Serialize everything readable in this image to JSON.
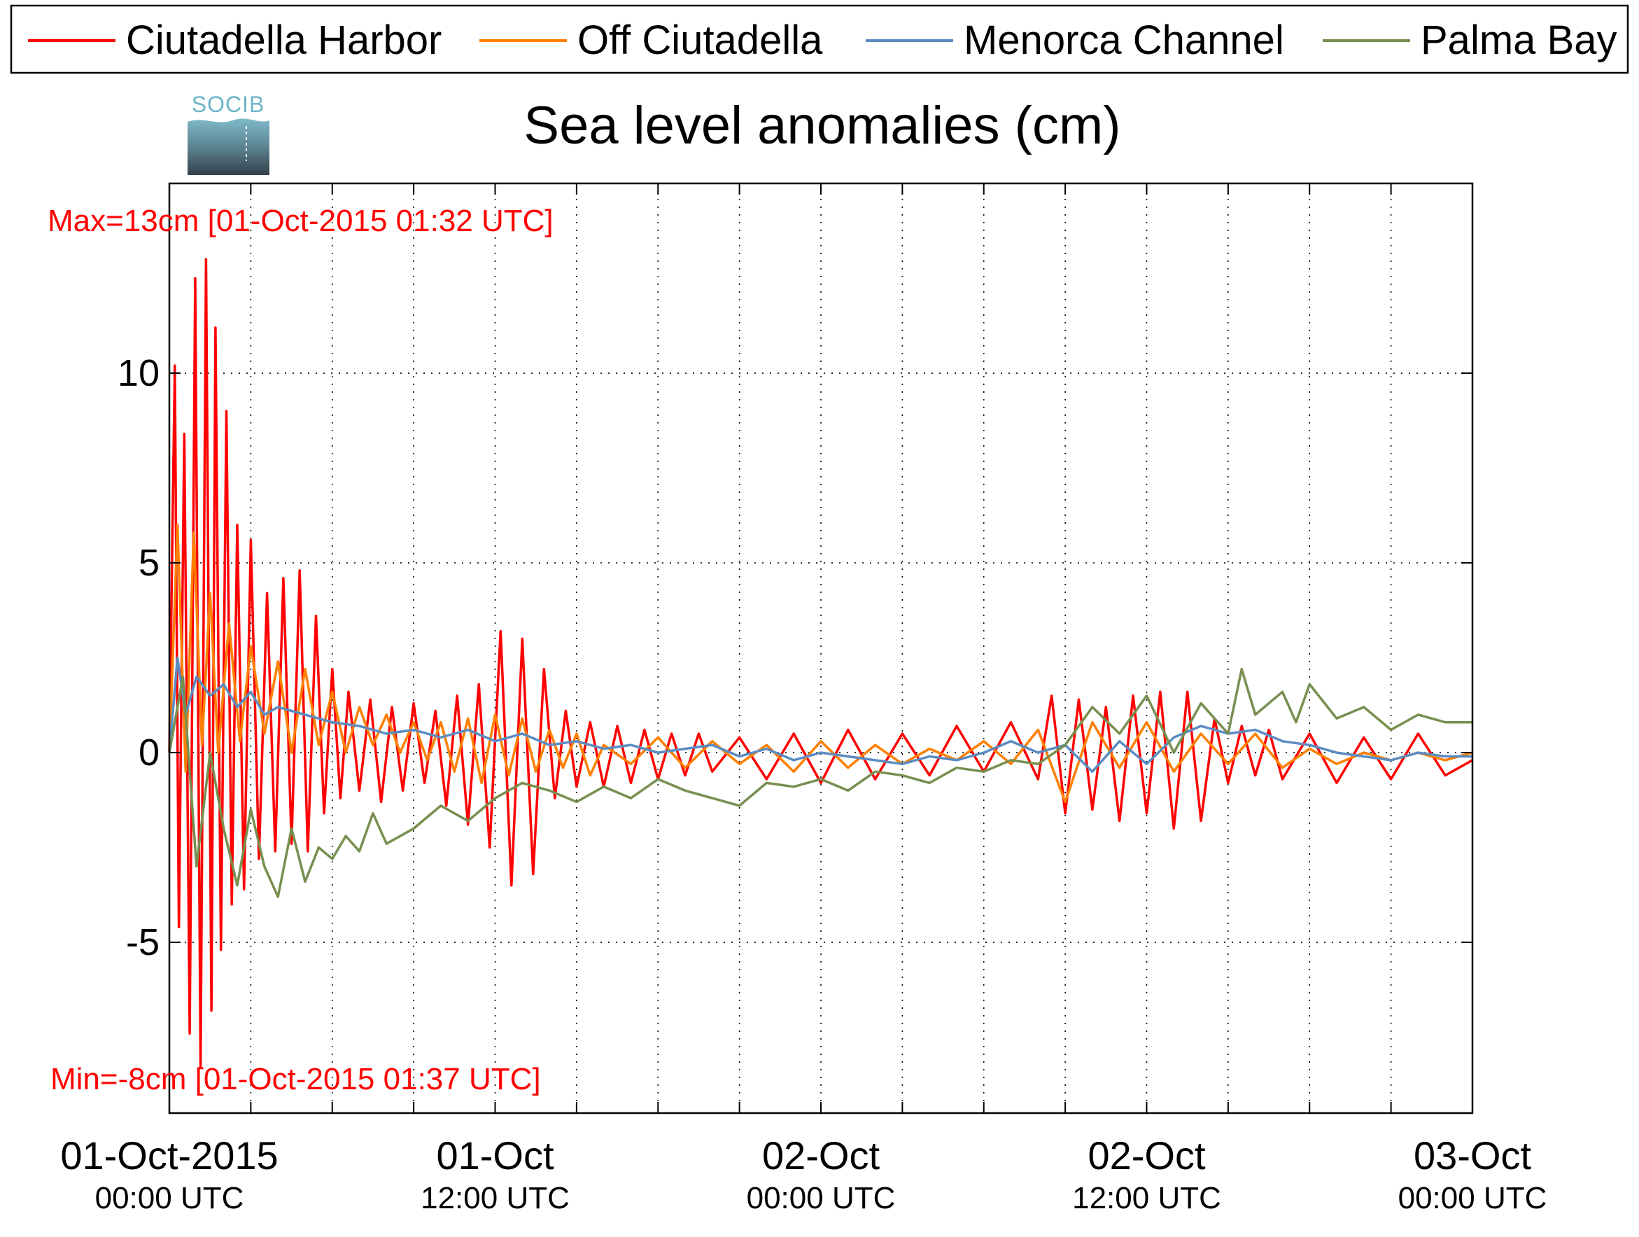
{
  "chart_data": {
    "type": "line",
    "title": "Sea level anomalies (cm)",
    "logo_text": "SOCIB",
    "ylim": [
      -9.5,
      15
    ],
    "y_ticks": [
      -5,
      0,
      5,
      10
    ],
    "y_tick_labels": [
      "-5",
      "0",
      "5",
      "10"
    ],
    "x_start": "2015-10-01 00:00 UTC",
    "x_end": "2015-10-03 00:00 UTC",
    "x_ticks": [
      {
        "day": "01-Oct-2015",
        "time": "00:00 UTC",
        "hours": 0
      },
      {
        "day": "01-Oct",
        "time": "12:00 UTC",
        "hours": 12
      },
      {
        "day": "02-Oct",
        "time": "00:00 UTC",
        "hours": 24
      },
      {
        "day": "02-Oct",
        "time": "12:00 UTC",
        "hours": 36
      },
      {
        "day": "03-Oct",
        "time": "00:00 UTC",
        "hours": 48
      }
    ],
    "x_minor_tick_step_hours": 3,
    "grid": true,
    "legend_position": "top",
    "annotations": {
      "max": "Max=13cm [01-Oct-2015 01:32 UTC]",
      "min": "Min=-8cm [01-Oct-2015 01:37 UTC]",
      "color": "#ff0000"
    },
    "series": [
      {
        "name": "Ciutadella Harbor",
        "color": "#ff0000",
        "x_hours": [
          0,
          0.2,
          0.35,
          0.55,
          0.75,
          0.95,
          1.15,
          1.35,
          1.55,
          1.7,
          1.9,
          2.1,
          2.3,
          2.5,
          2.75,
          3.0,
          3.3,
          3.6,
          3.9,
          4.2,
          4.5,
          4.8,
          5.1,
          5.4,
          5.7,
          6.0,
          6.3,
          6.6,
          7.0,
          7.4,
          7.8,
          8.2,
          8.6,
          9.0,
          9.4,
          9.8,
          10.2,
          10.6,
          11.0,
          11.4,
          11.8,
          12.2,
          12.6,
          13.0,
          13.4,
          13.8,
          14.2,
          14.6,
          15.0,
          15.5,
          16.0,
          16.5,
          17.0,
          17.5,
          18.0,
          18.5,
          19.0,
          19.5,
          20.0,
          21.0,
          22.0,
          23.0,
          24.0,
          25.0,
          26.0,
          27.0,
          28.0,
          29.0,
          30.0,
          31.0,
          32.0,
          32.5,
          33.0,
          33.5,
          34.0,
          34.5,
          35.0,
          35.5,
          36.0,
          36.5,
          37.0,
          37.5,
          38.0,
          38.5,
          39.0,
          39.5,
          40.0,
          40.5,
          41.0,
          42.0,
          43.0,
          44.0,
          45.0,
          46.0,
          47.0,
          48.0
        ],
        "values": [
          0,
          10.2,
          -4.6,
          8.4,
          -7.4,
          12.5,
          -8.3,
          13.0,
          -6.8,
          11.2,
          -5.2,
          9.0,
          -4.0,
          6.0,
          -3.6,
          5.6,
          -2.8,
          4.2,
          -2.6,
          4.6,
          -2.4,
          4.8,
          -2.6,
          3.6,
          -1.6,
          2.2,
          -1.2,
          1.6,
          -1.0,
          1.4,
          -1.3,
          1.2,
          -1.0,
          1.3,
          -0.8,
          1.1,
          -1.4,
          1.5,
          -1.9,
          1.8,
          -2.5,
          3.2,
          -3.5,
          3.0,
          -3.2,
          2.2,
          -1.2,
          1.1,
          -0.9,
          0.8,
          -0.9,
          0.7,
          -0.8,
          0.6,
          -0.7,
          0.5,
          -0.6,
          0.5,
          -0.5,
          0.4,
          -0.7,
          0.5,
          -0.8,
          0.6,
          -0.7,
          0.5,
          -0.6,
          0.7,
          -0.5,
          0.8,
          -0.7,
          1.5,
          -1.6,
          1.4,
          -1.5,
          1.2,
          -1.8,
          1.5,
          -1.6,
          1.6,
          -2.0,
          1.6,
          -1.8,
          0.9,
          -0.8,
          0.7,
          -0.6,
          0.6,
          -0.7,
          0.5,
          -0.8,
          0.4,
          -0.7,
          0.5,
          -0.6,
          -0.2
        ]
      },
      {
        "name": "Off Ciutadella",
        "color": "#ff7f00",
        "x_hours": [
          0,
          0.3,
          0.6,
          0.9,
          1.2,
          1.5,
          1.8,
          2.2,
          2.6,
          3.0,
          3.5,
          4.0,
          4.5,
          5.0,
          5.5,
          6.0,
          6.5,
          7.0,
          7.5,
          8.0,
          8.5,
          9.0,
          9.5,
          10.0,
          10.5,
          11.0,
          11.5,
          12.0,
          12.5,
          13.0,
          13.5,
          14.0,
          14.5,
          15.0,
          15.5,
          16.0,
          17.0,
          18.0,
          19.0,
          20.0,
          21.0,
          22.0,
          23.0,
          24.0,
          25.0,
          26.0,
          27.0,
          28.0,
          29.0,
          30.0,
          31.0,
          32.0,
          33.0,
          34.0,
          35.0,
          36.0,
          37.0,
          38.0,
          39.0,
          40.0,
          41.0,
          42.0,
          43.0,
          44.0,
          45.0,
          46.0,
          47.0,
          48.0
        ],
        "values": [
          0,
          6.0,
          -0.5,
          5.8,
          0.2,
          4.2,
          0.0,
          3.4,
          0.3,
          2.8,
          0.5,
          2.4,
          0.0,
          2.2,
          0.2,
          1.6,
          0.0,
          1.2,
          0.2,
          1.0,
          0.0,
          0.8,
          -0.2,
          0.8,
          -0.5,
          0.9,
          -0.8,
          1.0,
          -0.6,
          0.9,
          -0.5,
          0.6,
          -0.4,
          0.5,
          -0.6,
          0.2,
          -0.3,
          0.4,
          -0.4,
          0.3,
          -0.3,
          0.2,
          -0.5,
          0.3,
          -0.4,
          0.2,
          -0.3,
          0.1,
          -0.2,
          0.3,
          -0.3,
          0.6,
          -1.3,
          0.8,
          -0.4,
          0.8,
          -0.5,
          0.5,
          -0.3,
          0.5,
          -0.4,
          0.1,
          -0.3,
          0.0,
          -0.2,
          0.0,
          -0.2,
          0.0
        ]
      },
      {
        "name": "Menorca Channel",
        "color": "#5b8cc2",
        "x_hours": [
          0,
          0.3,
          0.6,
          1.0,
          1.5,
          2.0,
          2.5,
          3.0,
          3.5,
          4.0,
          5.0,
          6.0,
          7.0,
          8.0,
          9.0,
          10.0,
          11.0,
          12.0,
          13.0,
          14.0,
          15.0,
          16.0,
          17.0,
          18.0,
          19.0,
          20.0,
          21.0,
          22.0,
          23.0,
          24.0,
          25.0,
          26.0,
          27.0,
          28.0,
          29.0,
          30.0,
          31.0,
          32.0,
          33.0,
          34.0,
          35.0,
          36.0,
          37.0,
          38.0,
          39.0,
          40.0,
          41.0,
          42.0,
          43.0,
          44.0,
          45.0,
          46.0,
          47.0,
          48.0
        ],
        "values": [
          0,
          2.5,
          1.0,
          2.0,
          1.5,
          1.8,
          1.2,
          1.6,
          1.0,
          1.2,
          1.0,
          0.8,
          0.7,
          0.5,
          0.6,
          0.4,
          0.6,
          0.3,
          0.5,
          0.2,
          0.3,
          0.1,
          0.2,
          0.0,
          0.1,
          0.2,
          -0.1,
          0.1,
          -0.2,
          0.0,
          -0.1,
          -0.2,
          -0.3,
          -0.1,
          -0.2,
          0.0,
          0.3,
          0.0,
          0.2,
          -0.5,
          0.3,
          -0.3,
          0.4,
          0.7,
          0.5,
          0.6,
          0.3,
          0.2,
          0.0,
          -0.1,
          -0.2,
          0.0,
          -0.1,
          -0.1
        ]
      },
      {
        "name": "Palma Bay",
        "color": "#778f4f",
        "x_hours": [
          0,
          0.5,
          1.0,
          1.5,
          2.0,
          2.5,
          3.0,
          3.5,
          4.0,
          4.5,
          5.0,
          5.5,
          6.0,
          6.5,
          7.0,
          7.5,
          8.0,
          9.0,
          10.0,
          11.0,
          12.0,
          13.0,
          14.0,
          15.0,
          16.0,
          17.0,
          18.0,
          19.0,
          20.0,
          21.0,
          22.0,
          23.0,
          24.0,
          25.0,
          26.0,
          27.0,
          28.0,
          29.0,
          30.0,
          31.0,
          32.0,
          33.0,
          34.0,
          35.0,
          36.0,
          37.0,
          38.0,
          39.0,
          39.5,
          40.0,
          41.0,
          41.5,
          42.0,
          43.0,
          44.0,
          45.0,
          46.0,
          47.0,
          48.0
        ],
        "values": [
          0,
          2.0,
          -3.0,
          0.0,
          -2.0,
          -3.5,
          -1.5,
          -3.0,
          -3.8,
          -2.0,
          -3.4,
          -2.5,
          -2.8,
          -2.2,
          -2.6,
          -1.6,
          -2.4,
          -2.0,
          -1.4,
          -1.8,
          -1.2,
          -0.8,
          -1.0,
          -1.3,
          -0.9,
          -1.2,
          -0.7,
          -1.0,
          -1.2,
          -1.4,
          -0.8,
          -0.9,
          -0.7,
          -1.0,
          -0.5,
          -0.6,
          -0.8,
          -0.4,
          -0.5,
          -0.2,
          -0.3,
          0.2,
          1.2,
          0.5,
          1.5,
          0.0,
          1.3,
          0.5,
          2.2,
          1.0,
          1.6,
          0.8,
          1.8,
          0.9,
          1.2,
          0.6,
          1.0,
          0.8,
          0.8
        ]
      }
    ]
  }
}
